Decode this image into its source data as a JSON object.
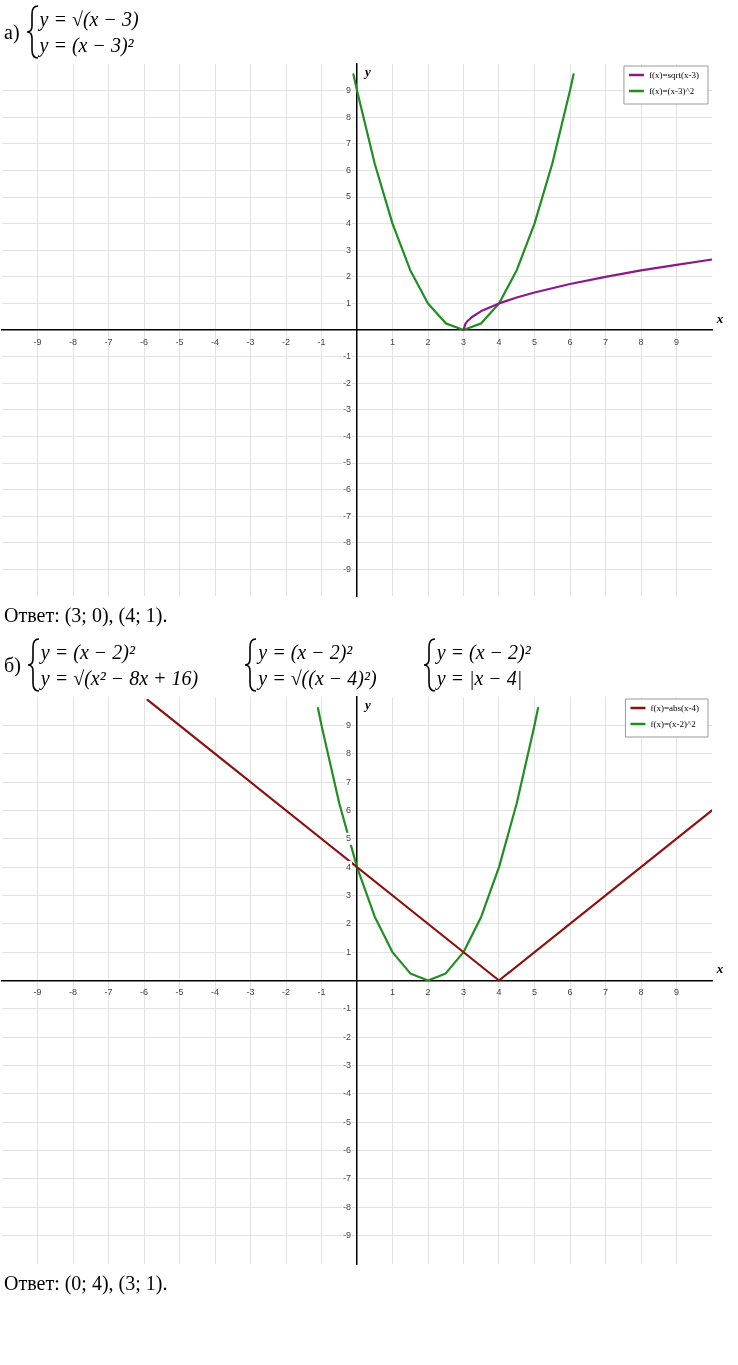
{
  "chart_data": [
    {
      "type": "line",
      "title": "а)",
      "subtitle": [
        "y = √(x − 3)\ny = (x − 3)²"
      ],
      "xlabel": "x",
      "ylabel": "y",
      "xlim": [
        -10,
        10
      ],
      "ylim": [
        -10,
        10
      ],
      "xticks": [
        -9,
        -8,
        -7,
        -6,
        -5,
        -4,
        -3,
        -2,
        -1,
        1,
        2,
        3,
        4,
        5,
        6,
        7,
        8,
        9
      ],
      "yticks": [
        -9,
        -8,
        -7,
        -6,
        -5,
        -4,
        -3,
        -2,
        -1,
        1,
        2,
        3,
        4,
        5,
        6,
        7,
        8,
        9
      ],
      "grid": true,
      "legend": "top right",
      "marker": "none",
      "line_style": "solid",
      "series": [
        {
          "name": "f(x)=sqrt(x-3)",
          "color": "#8b1a89",
          "x": [
            3,
            3.05,
            3.1,
            3.25,
            3.5,
            4,
            4.5,
            5,
            6,
            7,
            8,
            9,
            10
          ],
          "values": [
            0,
            0.22,
            0.32,
            0.5,
            0.71,
            1,
            1.22,
            1.41,
            1.73,
            2,
            2.24,
            2.45,
            2.65
          ]
        },
        {
          "name": "f(x)=(x-3)^2",
          "color": "#1f8f1f",
          "x": [
            -0.1,
            0,
            0.5,
            1,
            1.5,
            2,
            2.5,
            3,
            3.5,
            4,
            4.5,
            5,
            5.5,
            6,
            6.1
          ],
          "values": [
            9.61,
            9,
            6.25,
            4,
            2.25,
            1,
            0.25,
            0,
            0.25,
            1,
            2.25,
            4,
            6.25,
            9,
            9.61
          ]
        }
      ],
      "annotations": [
        "Ответ: (3; 0), (4; 1)."
      ]
    },
    {
      "type": "line",
      "title": "б)",
      "subtitle": [
        "y = (x − 2)²\ny = √(x² − 8x + 16)",
        "y = (x − 2)²\ny = √((x − 4)²)",
        "y = (x − 2)²\ny = |x − 4|"
      ],
      "xlabel": "x",
      "ylabel": "y",
      "xlim": [
        -10,
        10
      ],
      "ylim": [
        -10,
        10
      ],
      "xticks": [
        -9,
        -8,
        -7,
        -6,
        -5,
        -4,
        -3,
        -2,
        -1,
        1,
        2,
        3,
        4,
        5,
        6,
        7,
        8,
        9
      ],
      "yticks": [
        -9,
        -8,
        -7,
        -6,
        -5,
        -4,
        -3,
        -2,
        -1,
        1,
        2,
        3,
        4,
        5,
        6,
        7,
        8,
        9
      ],
      "grid": true,
      "legend": "top right",
      "marker": "none",
      "line_style": "solid",
      "series": [
        {
          "name": "f(x)=abs(x-4)",
          "color": "#8b1010",
          "x": [
            -5.9,
            4,
            10
          ],
          "values": [
            9.9,
            0,
            6
          ]
        },
        {
          "name": "f(x)=(x-2)^2",
          "color": "#1f8f1f",
          "x": [
            -1.1,
            -1,
            -0.5,
            0,
            0.5,
            1,
            1.5,
            2,
            2.5,
            3,
            3.5,
            4,
            4.5,
            5,
            5.1
          ],
          "values": [
            9.61,
            9,
            6.25,
            4,
            2.25,
            1,
            0.25,
            0,
            0.25,
            1,
            2.25,
            4,
            6.25,
            9,
            9.61
          ]
        }
      ],
      "annotations": [
        "Ответ: (0; 4), (3; 1)."
      ]
    }
  ]
}
